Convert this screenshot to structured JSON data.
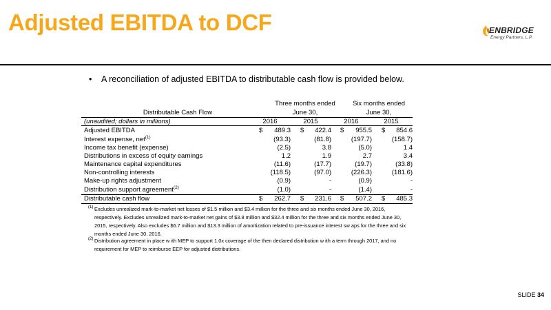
{
  "title": "Adjusted EBITDA to DCF",
  "logo": {
    "name": "ENBRIDGE",
    "subtitle": "Energy Partners, L.P."
  },
  "bullet": "A reconciliation of adjusted EBITDA to distributable cash flow is provided below.",
  "table": {
    "label_header": "Distributable Cash Flow",
    "group_headers": [
      {
        "line1": "Three months ended",
        "line2": "June 30,"
      },
      {
        "line1": "Six months ended",
        "line2": "June 30,"
      }
    ],
    "units_label": "(unaudited; dollars in millions)",
    "years": [
      "2016",
      "2015",
      "2016",
      "2015"
    ],
    "rows": [
      {
        "label": "Adjusted EBITDA",
        "sup": "",
        "values": [
          "489.3",
          "422.4",
          "955.5",
          "854.6"
        ],
        "currency": true
      },
      {
        "label": "Interest expense, net",
        "sup": "(1)",
        "values": [
          "(93.3)",
          "(81.8)",
          "(197.7)",
          "(158.7)"
        ],
        "currency": false
      },
      {
        "label": "Income tax benefit (expense)",
        "sup": "",
        "values": [
          "(2.5)",
          "3.8",
          "(5.0)",
          "1.4"
        ],
        "currency": false
      },
      {
        "label": "Distributions in excess of equity earnings",
        "sup": "",
        "values": [
          "1.2",
          "1.9",
          "2.7",
          "3.4"
        ],
        "currency": false
      },
      {
        "label": "Maintenance capital expenditures",
        "sup": "",
        "values": [
          "(11.6)",
          "(17.7)",
          "(19.7)",
          "(33.8)"
        ],
        "currency": false
      },
      {
        "label": "Non-controlling interests",
        "sup": "",
        "values": [
          "(118.5)",
          "(97.0)",
          "(226.3)",
          "(181.6)"
        ],
        "currency": false
      },
      {
        "label": "Make-up rights adjustment",
        "sup": "",
        "values": [
          "(0.9)",
          "-",
          "(0.9)",
          "-"
        ],
        "currency": false
      },
      {
        "label": "Distribution support agreement",
        "sup": "(2)",
        "values": [
          "(1.0)",
          "-",
          "(1.4)",
          "-"
        ],
        "currency": false
      },
      {
        "label": "Distributable cash flow",
        "sup": "",
        "values": [
          "262.7",
          "231.6",
          "507.2",
          "485.3"
        ],
        "currency": true
      }
    ],
    "currency_symbol": "$"
  },
  "footnotes": [
    {
      "num": "(1)",
      "text": "Excludes unrealized mark-to-market net losses of $1.5 million and $3.4 million for the three and six months ended June 30, 2016, respectively. Excludes unrealized mark-to-market net gains of $3.8 million and $32.4 million for the three and six months ended June 30, 2015, respectively. Also excludes $6.7 million and $13.3 million of amortization related to pre-issuance interest sw aps for the three and six months ended June 30, 2016."
    },
    {
      "num": "(2)",
      "text": "Distribution agreement in place w ith MEP to support 1.0x coverage of the then declared distribution w ith a term through 2017, and no requirement for MEP to reimburse EEP for adjusted distributions."
    }
  ],
  "slide_label": "SLIDE",
  "slide_number": "34"
}
